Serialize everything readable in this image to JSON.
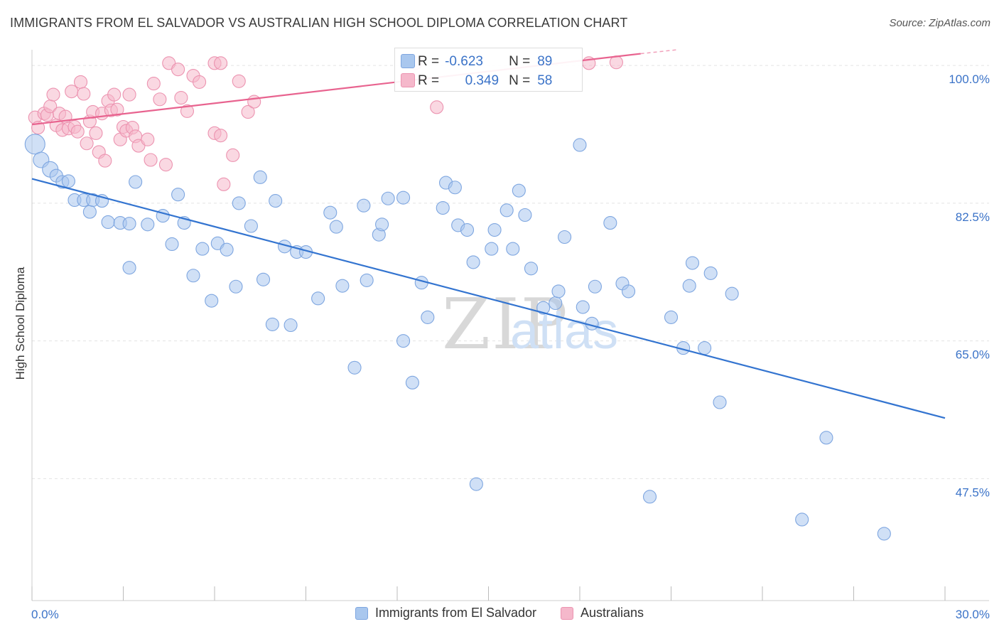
{
  "title": "IMMIGRANTS FROM EL SALVADOR VS AUSTRALIAN HIGH SCHOOL DIPLOMA CORRELATION CHART",
  "source": "Source: ZipAtlas.com",
  "watermark": {
    "zip": "ZIP",
    "atlas": "atlas"
  },
  "colors": {
    "blue_fill": "#a9c7ee",
    "blue_stroke": "#7ea6e0",
    "blue_line": "#3374d0",
    "pink_fill": "#f5b8cb",
    "pink_stroke": "#ec93b0",
    "pink_line": "#e8638f",
    "tick_text": "#3b73c8",
    "grid": "#e3e3e3"
  },
  "stats": {
    "blue": {
      "r_label": "R =",
      "r_value": "-0.623",
      "n_label": "N =",
      "n_value": "89"
    },
    "pink": {
      "r_label": "R =",
      "r_value": "0.349",
      "n_label": "N =",
      "n_value": "58"
    }
  },
  "chart_data": {
    "type": "scatter",
    "title": "IMMIGRANTS FROM EL SALVADOR VS AUSTRALIAN HIGH SCHOOL DIPLOMA CORRELATION CHART",
    "xlabel": "",
    "ylabel": "High School Diploma",
    "xlim": [
      0,
      30
    ],
    "ylim": [
      32,
      102
    ],
    "x_tick_labels": [
      "0.0%",
      "30.0%"
    ],
    "y_ticks": [
      47.5,
      65.0,
      82.5,
      100.0
    ],
    "y_tick_labels": [
      "47.5%",
      "65.0%",
      "82.5%",
      "100.0%"
    ],
    "grid": true,
    "legend": [
      "Immigrants from El Salvador",
      "Australians"
    ],
    "series": [
      {
        "name": "Immigrants from El Salvador",
        "trend": {
          "x": [
            0.0,
            30.0
          ],
          "y": [
            85.6,
            55.2
          ]
        },
        "points": [
          [
            0.1,
            90.0
          ],
          [
            0.3,
            88.0
          ],
          [
            0.6,
            86.8
          ],
          [
            0.8,
            86.0
          ],
          [
            1.0,
            85.2
          ],
          [
            1.2,
            85.3
          ],
          [
            1.4,
            82.9
          ],
          [
            1.7,
            82.9
          ],
          [
            1.9,
            81.4
          ],
          [
            2.0,
            82.9
          ],
          [
            2.3,
            82.8
          ],
          [
            2.5,
            80.1
          ],
          [
            2.9,
            80.0
          ],
          [
            3.2,
            79.9
          ],
          [
            3.4,
            85.2
          ],
          [
            3.8,
            79.8
          ],
          [
            4.3,
            80.9
          ],
          [
            4.6,
            77.3
          ],
          [
            4.8,
            83.6
          ],
          [
            5.0,
            80.0
          ],
          [
            3.2,
            74.3
          ],
          [
            5.3,
            73.3
          ],
          [
            5.6,
            76.7
          ],
          [
            5.9,
            70.1
          ],
          [
            6.1,
            77.4
          ],
          [
            6.4,
            76.6
          ],
          [
            6.7,
            71.9
          ],
          [
            6.8,
            82.5
          ],
          [
            7.2,
            79.6
          ],
          [
            7.5,
            85.8
          ],
          [
            7.6,
            72.8
          ],
          [
            7.9,
            67.1
          ],
          [
            8.0,
            82.8
          ],
          [
            8.3,
            77.0
          ],
          [
            8.5,
            67.0
          ],
          [
            8.7,
            76.3
          ],
          [
            9.0,
            76.3
          ],
          [
            9.4,
            70.4
          ],
          [
            9.8,
            81.3
          ],
          [
            10.0,
            79.5
          ],
          [
            10.2,
            72.0
          ],
          [
            10.6,
            61.6
          ],
          [
            10.9,
            82.2
          ],
          [
            11.0,
            72.7
          ],
          [
            11.4,
            78.5
          ],
          [
            11.5,
            79.8
          ],
          [
            11.7,
            83.1
          ],
          [
            12.2,
            83.2
          ],
          [
            12.2,
            65.0
          ],
          [
            12.5,
            59.7
          ],
          [
            12.8,
            72.4
          ],
          [
            13.0,
            68.0
          ],
          [
            13.5,
            81.9
          ],
          [
            13.6,
            85.1
          ],
          [
            13.9,
            84.5
          ],
          [
            14.0,
            79.7
          ],
          [
            14.3,
            79.1
          ],
          [
            14.5,
            75.0
          ],
          [
            14.6,
            46.8
          ],
          [
            15.1,
            76.7
          ],
          [
            15.2,
            79.1
          ],
          [
            15.6,
            81.6
          ],
          [
            15.8,
            76.7
          ],
          [
            16.0,
            84.1
          ],
          [
            16.2,
            81.0
          ],
          [
            16.4,
            74.2
          ],
          [
            16.8,
            69.2
          ],
          [
            17.2,
            69.8
          ],
          [
            17.3,
            71.3
          ],
          [
            17.5,
            78.2
          ],
          [
            18.0,
            89.9
          ],
          [
            18.1,
            69.3
          ],
          [
            18.4,
            67.2
          ],
          [
            18.5,
            71.9
          ],
          [
            19.0,
            80.0
          ],
          [
            19.4,
            72.3
          ],
          [
            19.6,
            71.3
          ],
          [
            20.3,
            45.2
          ],
          [
            21.0,
            68.0
          ],
          [
            21.4,
            64.1
          ],
          [
            21.6,
            72.0
          ],
          [
            21.7,
            74.9
          ],
          [
            22.1,
            64.1
          ],
          [
            22.3,
            73.6
          ],
          [
            22.6,
            57.2
          ],
          [
            23.0,
            71.0
          ],
          [
            26.1,
            52.7
          ],
          [
            25.3,
            42.3
          ],
          [
            28.0,
            40.5
          ]
        ]
      },
      {
        "name": "Australians",
        "trend": {
          "x": [
            0.0,
            20.0
          ],
          "y": [
            92.5,
            101.5
          ]
        },
        "trend_extension": {
          "x": [
            20.0,
            21.2
          ],
          "y": [
            101.5,
            102.0
          ]
        },
        "points": [
          [
            0.1,
            93.4
          ],
          [
            0.2,
            92.1
          ],
          [
            0.4,
            93.9
          ],
          [
            0.5,
            93.7
          ],
          [
            0.6,
            94.8
          ],
          [
            0.7,
            96.3
          ],
          [
            0.8,
            92.4
          ],
          [
            0.9,
            93.9
          ],
          [
            1.0,
            91.8
          ],
          [
            1.1,
            93.5
          ],
          [
            1.2,
            92.0
          ],
          [
            1.3,
            96.7
          ],
          [
            1.4,
            92.2
          ],
          [
            1.5,
            91.6
          ],
          [
            1.6,
            97.9
          ],
          [
            1.7,
            96.4
          ],
          [
            1.8,
            90.1
          ],
          [
            1.9,
            92.9
          ],
          [
            2.0,
            94.1
          ],
          [
            2.1,
            91.4
          ],
          [
            2.2,
            89.0
          ],
          [
            2.3,
            93.9
          ],
          [
            2.4,
            87.9
          ],
          [
            2.5,
            95.5
          ],
          [
            2.6,
            94.3
          ],
          [
            2.7,
            96.3
          ],
          [
            2.8,
            94.4
          ],
          [
            2.9,
            90.6
          ],
          [
            3.0,
            92.2
          ],
          [
            3.1,
            91.7
          ],
          [
            3.2,
            96.3
          ],
          [
            3.3,
            92.1
          ],
          [
            3.4,
            91.0
          ],
          [
            3.5,
            89.8
          ],
          [
            3.8,
            90.6
          ],
          [
            3.9,
            88.0
          ],
          [
            4.0,
            97.7
          ],
          [
            4.2,
            95.7
          ],
          [
            4.4,
            87.4
          ],
          [
            4.5,
            100.3
          ],
          [
            4.8,
            99.5
          ],
          [
            4.9,
            95.9
          ],
          [
            5.1,
            94.2
          ],
          [
            5.3,
            98.7
          ],
          [
            5.5,
            97.9
          ],
          [
            6.0,
            100.3
          ],
          [
            6.2,
            100.3
          ],
          [
            6.0,
            91.4
          ],
          [
            6.2,
            91.1
          ],
          [
            6.3,
            84.9
          ],
          [
            6.6,
            88.6
          ],
          [
            6.8,
            98.0
          ],
          [
            7.1,
            94.1
          ],
          [
            7.3,
            95.4
          ],
          [
            12.6,
            100.3
          ],
          [
            13.3,
            94.7
          ],
          [
            18.3,
            100.3
          ],
          [
            19.2,
            100.4
          ]
        ]
      }
    ]
  },
  "legend_bottom": [
    {
      "label": "Immigrants from El Salvador"
    },
    {
      "label": "Australians"
    }
  ]
}
